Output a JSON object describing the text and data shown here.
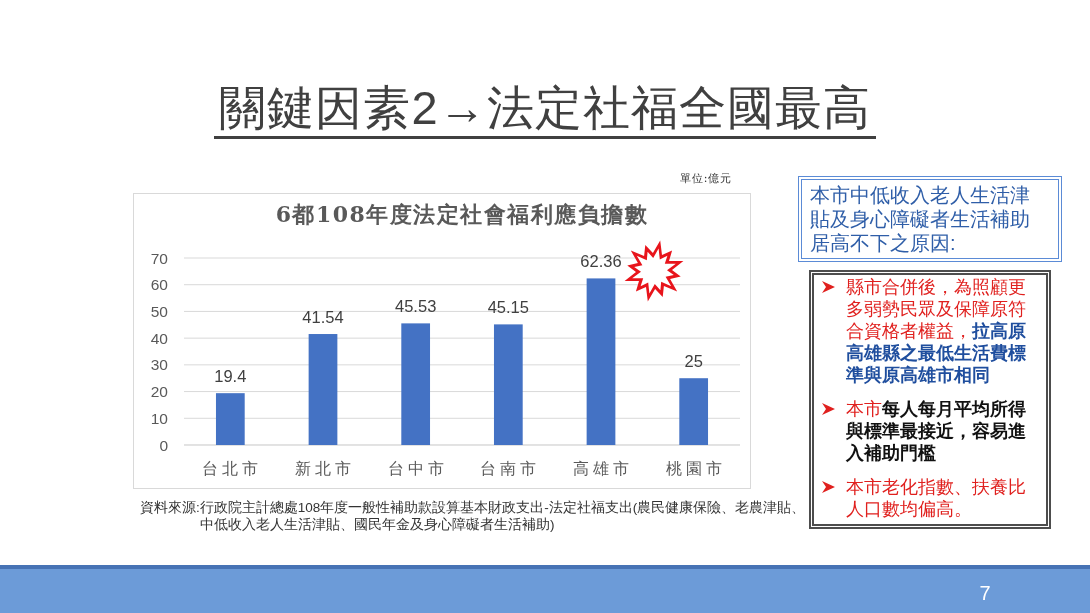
{
  "chart_data": {
    "type": "bar",
    "title": "關鍵因素2→法定社福全國最高",
    "subtitle": "6都108年度法定社會福利應負擔數",
    "categories": [
      "台北市",
      "新北市",
      "台中市",
      "台南市",
      "高雄市",
      "桃園市"
    ],
    "values": [
      19.4,
      41.54,
      45.53,
      45.15,
      62.36,
      25
    ],
    "color": "#4472c4",
    "ylim": [
      0,
      70
    ],
    "yticks": [
      0,
      10,
      20,
      30,
      40,
      50,
      60,
      70
    ],
    "grid": "y",
    "data_labels": true,
    "annotations": [
      "單位:億元",
      "資料來源:行政院主計總處108年度一般性補助款設算基本財政支出-法定社福支出(農民健康保險、老農津貼、中低收入老人生活津貼、國民年金及身心障礙者生活補助)",
      "本市中低收入老人生活津貼及身心障礙者生活補助居高不下之原因:",
      "縣市合併後，為照顧更多弱勢民眾及保障原符合資格者權益，**拉高原高雄縣之最低生活費標準與原高雄市相同**",
      "本市**每人每月平均所得與標準最接近，容易進入補助門檻**",
      "本市老化指數、扶養比人口數均偏高。",
      "7"
    ]
  }
}
